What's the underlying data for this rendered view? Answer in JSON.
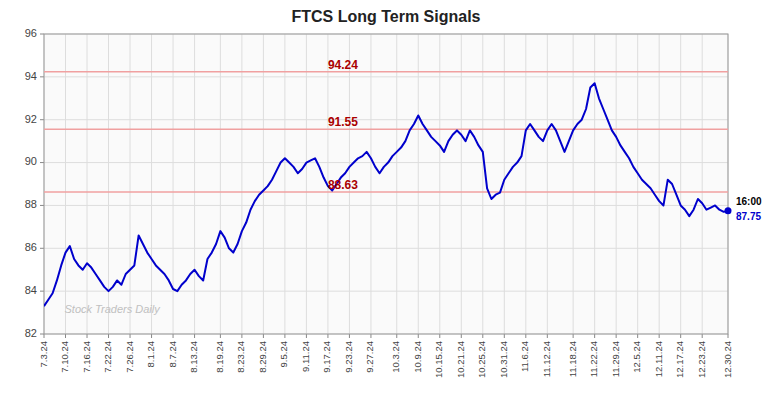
{
  "chart_data": {
    "type": "line",
    "title": "FTCS Long Term Signals",
    "color": "#0000cc",
    "categories": [
      "7.3.24",
      null,
      null,
      null,
      null,
      "7.10.24",
      null,
      null,
      null,
      null,
      "7.16.24",
      null,
      null,
      null,
      null,
      "7.22.24",
      null,
      null,
      null,
      null,
      "7.26.24",
      null,
      null,
      null,
      null,
      "8.1.24",
      null,
      null,
      null,
      null,
      "8.7.24",
      null,
      null,
      null,
      null,
      "8.13.24",
      null,
      null,
      null,
      null,
      null,
      "8.19.24",
      null,
      null,
      null,
      null,
      "8.23.24",
      null,
      null,
      null,
      null,
      "8.29.24",
      null,
      null,
      null,
      null,
      "9.5.24",
      null,
      null,
      null,
      null,
      "9.11.24",
      null,
      null,
      null,
      null,
      "9.17.24",
      null,
      null,
      null,
      null,
      "9.23.24",
      null,
      null,
      null,
      null,
      "9.27.24",
      null,
      null,
      null,
      null,
      null,
      "10.3.24",
      null,
      null,
      null,
      null,
      "10.9.24",
      null,
      null,
      null,
      null,
      "10.15.24",
      null,
      null,
      null,
      null,
      "10.21.24",
      null,
      null,
      null,
      null,
      "10.25.24",
      null,
      null,
      null,
      null,
      "10.31.24",
      null,
      null,
      null,
      null,
      "11.6.24",
      null,
      null,
      null,
      null,
      "11.12.24",
      null,
      null,
      null,
      null,
      null,
      "11.18.24",
      null,
      null,
      null,
      null,
      "11.22.24",
      null,
      null,
      null,
      null,
      "11.29.24",
      null,
      null,
      null,
      null,
      "12.5.24",
      null,
      null,
      null,
      null,
      "12.11.24",
      null,
      null,
      null,
      null,
      "12.17.24",
      null,
      null,
      null,
      null,
      "12.23.24",
      null,
      null,
      null,
      null,
      null,
      "12.30.24"
    ],
    "values": [
      83.3,
      83.6,
      83.9,
      84.5,
      85.2,
      85.8,
      86.1,
      85.5,
      85.2,
      85.0,
      85.3,
      85.1,
      84.8,
      84.5,
      84.2,
      84.0,
      84.2,
      84.5,
      84.3,
      84.8,
      85.0,
      85.2,
      86.6,
      86.2,
      85.8,
      85.5,
      85.2,
      85.0,
      84.8,
      84.5,
      84.1,
      84.0,
      84.3,
      84.5,
      84.8,
      85.0,
      84.7,
      84.5,
      85.5,
      85.8,
      86.2,
      86.8,
      86.5,
      86.0,
      85.8,
      86.2,
      86.8,
      87.2,
      87.8,
      88.2,
      88.5,
      88.7,
      88.9,
      89.2,
      89.6,
      90.0,
      90.2,
      90.0,
      89.8,
      89.5,
      89.7,
      90.0,
      90.1,
      90.2,
      89.8,
      89.3,
      88.9,
      88.7,
      89.0,
      89.3,
      89.5,
      89.8,
      90.0,
      90.2,
      90.3,
      90.5,
      90.2,
      89.8,
      89.5,
      89.8,
      90.0,
      90.3,
      90.5,
      90.7,
      91.0,
      91.5,
      91.8,
      92.2,
      91.8,
      91.5,
      91.2,
      91.0,
      90.8,
      90.5,
      91.0,
      91.3,
      91.5,
      91.3,
      91.0,
      91.5,
      91.2,
      90.8,
      90.5,
      88.8,
      88.3,
      88.5,
      88.6,
      89.2,
      89.5,
      89.8,
      90.0,
      90.3,
      91.5,
      91.8,
      91.5,
      91.2,
      91.0,
      91.5,
      91.8,
      91.5,
      91.0,
      90.5,
      91.0,
      91.5,
      91.8,
      92.0,
      92.5,
      93.5,
      93.7,
      93.0,
      92.5,
      92.0,
      91.5,
      91.2,
      90.8,
      90.5,
      90.2,
      89.8,
      89.5,
      89.2,
      89.0,
      88.8,
      88.5,
      88.2,
      88.0,
      89.2,
      89.0,
      88.5,
      88.0,
      87.8,
      87.5,
      87.8,
      88.3,
      88.1,
      87.8,
      87.9,
      88.0,
      87.8,
      87.7,
      87.75
    ],
    "last_price": 87.75,
    "last_time": "16:00",
    "reference_lines": [
      {
        "value": 94.24,
        "label": "94.24",
        "color": "#f0a0a0",
        "label_color": "#aa0000"
      },
      {
        "value": 91.55,
        "label": "91.55",
        "color": "#f0a0a0",
        "label_color": "#aa0000"
      },
      {
        "value": 88.63,
        "label": "88.63",
        "color": "#f0a0a0",
        "label_color": "#aa0000"
      }
    ],
    "annotations": [
      "Stock Traders Daily"
    ],
    "ylim": [
      82,
      96
    ],
    "yticks": [
      82,
      84,
      86,
      88,
      90,
      92,
      94,
      96
    ],
    "grid": true
  }
}
